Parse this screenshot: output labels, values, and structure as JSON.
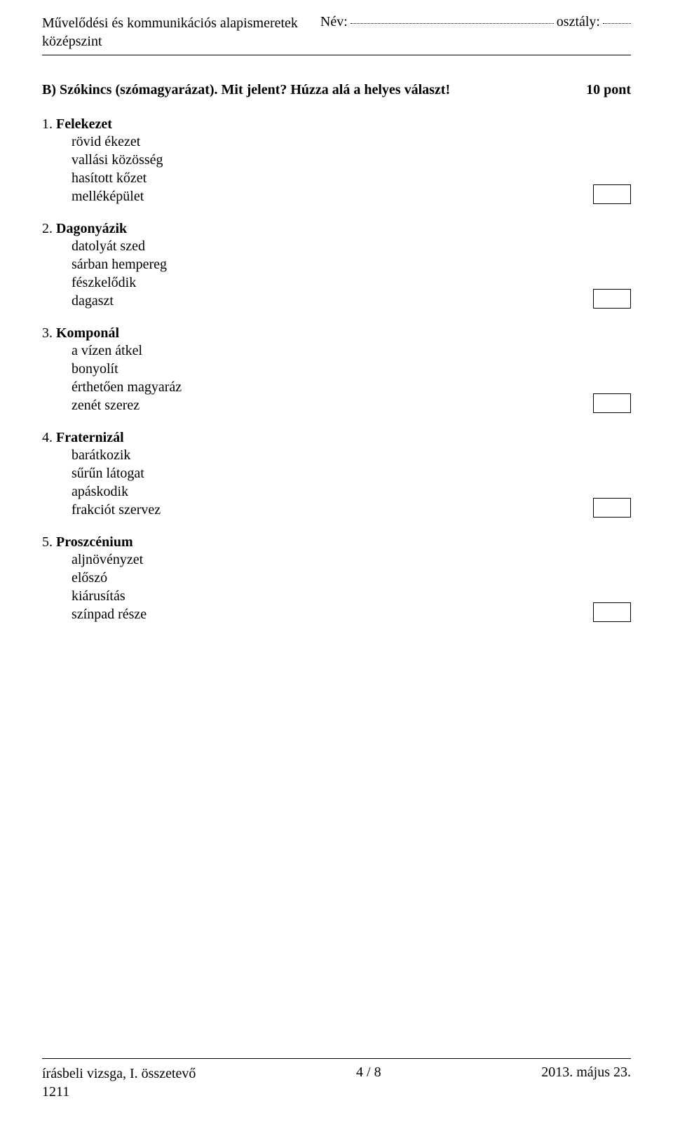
{
  "header": {
    "subject_line1": "Művelődési és kommunikációs alapismeretek",
    "subject_line2": "középszint",
    "name_label": "Név:",
    "class_label": "osztály:",
    "name_dots_width": 290,
    "class_dots_width": 40
  },
  "section": {
    "title": "B) Szókincs (szómagyarázat). Mit jelent? Húzza alá a helyes választ!",
    "points": "10 pont"
  },
  "questions": [
    {
      "number": "1. ",
      "term": "Felekezet",
      "options": [
        "rövid ékezet",
        "vallási közösség",
        "hasított kőzet",
        "melléképület"
      ]
    },
    {
      "number": "2. ",
      "term": "Dagonyázik",
      "options": [
        "datolyát szed",
        "sárban hempereg",
        "fészkelődik",
        "dagaszt"
      ]
    },
    {
      "number": "3. ",
      "term": "Komponál",
      "options": [
        "a vízen átkel",
        "bonyolít",
        "érthetően magyaráz",
        "zenét szerez"
      ]
    },
    {
      "number": "4. ",
      "term": "Fraternizál",
      "options": [
        "barátkozik",
        "sűrűn látogat",
        "apáskodik",
        "frakciót szervez"
      ]
    },
    {
      "number": "5. ",
      "term": "Proszcénium",
      "options": [
        "aljnövényzet",
        "előszó",
        "kiárusítás",
        "színpad része"
      ]
    }
  ],
  "footer": {
    "left_line1": "írásbeli vizsga, I. összetevő",
    "left_line2": "1211",
    "center": "4 / 8",
    "right": "2013. május 23."
  }
}
